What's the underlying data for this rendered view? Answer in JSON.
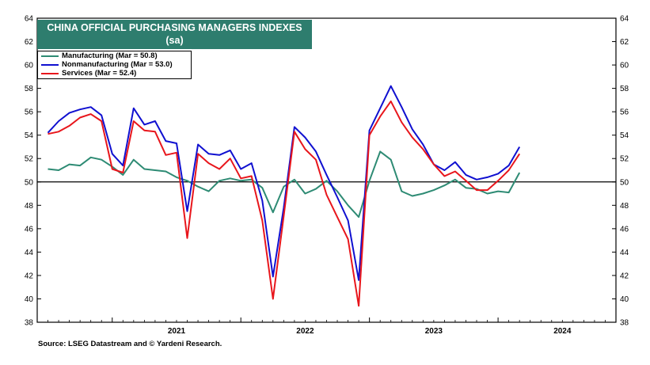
{
  "chart_data": {
    "type": "line",
    "title": "CHINA OFFICIAL PURCHASING MANAGERS INDEXES",
    "subtitle": "(sa)",
    "ylim": [
      38,
      64
    ],
    "yticks": [
      38,
      40,
      42,
      44,
      46,
      48,
      50,
      52,
      54,
      56,
      58,
      60,
      62,
      64
    ],
    "xlim": [
      "2020-06",
      "2024-12"
    ],
    "x_year_labels": [
      "2021",
      "2022",
      "2023",
      "2024"
    ],
    "reference_line": 50,
    "legend_position": "top-left",
    "grid": false,
    "x": [
      "2020-07",
      "2020-08",
      "2020-09",
      "2020-10",
      "2020-11",
      "2020-12",
      "2021-01",
      "2021-02",
      "2021-03",
      "2021-04",
      "2021-05",
      "2021-06",
      "2021-07",
      "2021-08",
      "2021-09",
      "2021-10",
      "2021-11",
      "2021-12",
      "2022-01",
      "2022-02",
      "2022-03",
      "2022-04",
      "2022-05",
      "2022-06",
      "2022-07",
      "2022-08",
      "2022-09",
      "2022-10",
      "2022-11",
      "2022-12",
      "2023-01",
      "2023-02",
      "2023-03",
      "2023-04",
      "2023-05",
      "2023-06",
      "2023-07",
      "2023-08",
      "2023-09",
      "2023-10",
      "2023-11",
      "2023-12",
      "2024-01",
      "2024-02",
      "2024-03"
    ],
    "series": [
      {
        "name": "Manufacturing (Mar = 50.8)",
        "color": "#2e8b74",
        "values": [
          51.1,
          51.0,
          51.5,
          51.4,
          52.1,
          51.9,
          51.3,
          50.6,
          51.9,
          51.1,
          51.0,
          50.9,
          50.4,
          50.1,
          49.6,
          49.2,
          50.1,
          50.3,
          50.1,
          50.2,
          49.5,
          47.4,
          49.6,
          50.2,
          49.0,
          49.4,
          50.1,
          49.2,
          48.0,
          47.0,
          50.1,
          52.6,
          51.9,
          49.2,
          48.8,
          49.0,
          49.3,
          49.7,
          50.2,
          49.5,
          49.4,
          49.0,
          49.2,
          49.1,
          50.8
        ]
      },
      {
        "name": "Nonmanufacturing  (Mar = 53.0)",
        "color": "#1010d0",
        "values": [
          54.2,
          55.2,
          55.9,
          56.2,
          56.4,
          55.7,
          52.4,
          51.4,
          56.3,
          54.9,
          55.2,
          53.5,
          53.3,
          47.5,
          53.2,
          52.4,
          52.3,
          52.7,
          51.1,
          51.6,
          48.4,
          41.9,
          47.8,
          54.7,
          53.8,
          52.6,
          50.6,
          48.7,
          46.7,
          41.6,
          54.4,
          56.3,
          58.2,
          56.4,
          54.5,
          53.2,
          51.5,
          51.0,
          51.7,
          50.6,
          50.2,
          50.4,
          50.7,
          51.4,
          53.0
        ]
      },
      {
        "name": "Services (Mar = 52.4)",
        "color": "#e8161c",
        "values": [
          54.1,
          54.3,
          54.8,
          55.5,
          55.8,
          55.2,
          51.1,
          50.8,
          55.2,
          54.4,
          54.3,
          52.3,
          52.5,
          45.2,
          52.4,
          51.6,
          51.1,
          52.0,
          50.3,
          50.5,
          46.7,
          40.0,
          47.1,
          54.3,
          52.8,
          51.9,
          48.9,
          47.0,
          45.1,
          39.4,
          54.0,
          55.6,
          56.9,
          55.1,
          53.8,
          52.8,
          51.5,
          50.5,
          50.9,
          50.1,
          49.3,
          49.3,
          50.1,
          51.0,
          52.4
        ]
      }
    ]
  },
  "source": "Source: LSEG Datastream and © Yardeni Research."
}
